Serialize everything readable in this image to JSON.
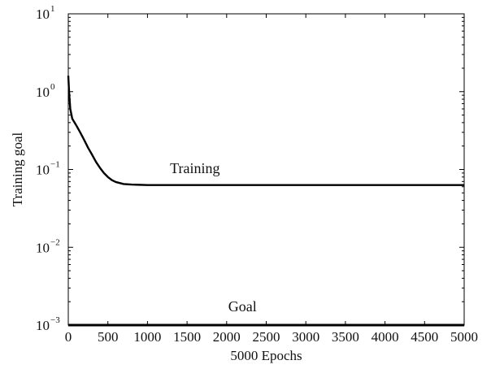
{
  "chart_data": {
    "type": "line",
    "xlabel": "5000 Epochs",
    "ylabel": "Training goal",
    "xlim": [
      0,
      5000
    ],
    "ylim": [
      0.001,
      10
    ],
    "yscale": "log",
    "grid": false,
    "x_ticks": [
      0,
      500,
      1000,
      1500,
      2000,
      2500,
      3000,
      3500,
      4000,
      4500,
      5000
    ],
    "x_tick_labels": [
      "0",
      "500",
      "1000",
      "1500",
      "2000",
      "2500",
      "3000",
      "3500",
      "4000",
      "4500",
      "5000"
    ],
    "y_ticks": [
      {
        "value": 0.001,
        "base": "10",
        "exponent": "−3"
      },
      {
        "value": 0.01,
        "base": "10",
        "exponent": "−2"
      },
      {
        "value": 0.1,
        "base": "10",
        "exponent": "−1"
      },
      {
        "value": 1,
        "base": "10",
        "exponent": "0"
      },
      {
        "value": 10,
        "base": "10",
        "exponent": "1"
      }
    ],
    "series": [
      {
        "name": "Training",
        "color": "#000000",
        "x": [
          0,
          10,
          25,
          50,
          100,
          150,
          200,
          250,
          300,
          350,
          400,
          450,
          500,
          550,
          600,
          650,
          700,
          800,
          900,
          1000,
          1200,
          1500,
          2000,
          3000,
          4000,
          5000
        ],
        "y": [
          1.6,
          1.0,
          0.6,
          0.45,
          0.37,
          0.3,
          0.24,
          0.19,
          0.155,
          0.125,
          0.105,
          0.09,
          0.08,
          0.073,
          0.069,
          0.067,
          0.065,
          0.064,
          0.0635,
          0.063,
          0.063,
          0.063,
          0.063,
          0.063,
          0.063,
          0.063
        ]
      },
      {
        "name": "Goal",
        "color": "#000000",
        "x": [
          0,
          5000
        ],
        "y": [
          0.001,
          0.001
        ]
      }
    ],
    "annotations": [
      {
        "text": "Training",
        "x": 1600,
        "y": 0.09
      },
      {
        "text": "Goal",
        "x": 2200,
        "y": 0.0015
      }
    ]
  }
}
